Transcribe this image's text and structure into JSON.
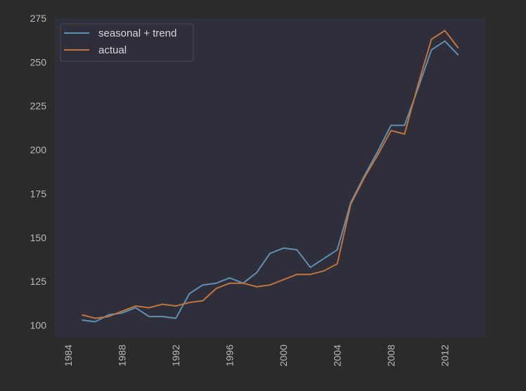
{
  "chart_data": {
    "type": "line",
    "x": [
      1985,
      1986,
      1987,
      1988,
      1989,
      1990,
      1991,
      1992,
      1993,
      1994,
      1995,
      1996,
      1997,
      1998,
      1999,
      2000,
      2001,
      2002,
      2003,
      2004,
      2005,
      2006,
      2007,
      2008,
      2009,
      2010,
      2011,
      2012,
      2013
    ],
    "series": [
      {
        "name": "seasonal + trend",
        "color": "#5f8fb2",
        "values": [
          103,
          102,
          106,
          107,
          110,
          105,
          105,
          104,
          118,
          123,
          124,
          127,
          124,
          130,
          141,
          144,
          143,
          133,
          138,
          143,
          170,
          185,
          199,
          214,
          214,
          235,
          257,
          262,
          254
        ]
      },
      {
        "name": "actual",
        "color": "#c0733d",
        "values": [
          106,
          104,
          105,
          108,
          111,
          110,
          112,
          111,
          113,
          114,
          121,
          124,
          124,
          122,
          123,
          126,
          129,
          129,
          131,
          135,
          169,
          184,
          197,
          211,
          209,
          237,
          263,
          268,
          258
        ]
      }
    ],
    "xlim": [
      1983,
      2015
    ],
    "ylim": [
      93,
      275
    ],
    "xticks": [
      1984,
      1988,
      1992,
      1996,
      2000,
      2004,
      2008,
      2012
    ],
    "yticks": [
      100,
      125,
      150,
      175,
      200,
      225,
      250,
      275
    ],
    "xlabel": "",
    "ylabel": "",
    "title": "",
    "grid": false,
    "legend_position": "top-left",
    "colors": {
      "figure_bg": "#2b2b2b",
      "axes_bg": "#2f2f3c",
      "text": "#b9b9b9"
    }
  }
}
